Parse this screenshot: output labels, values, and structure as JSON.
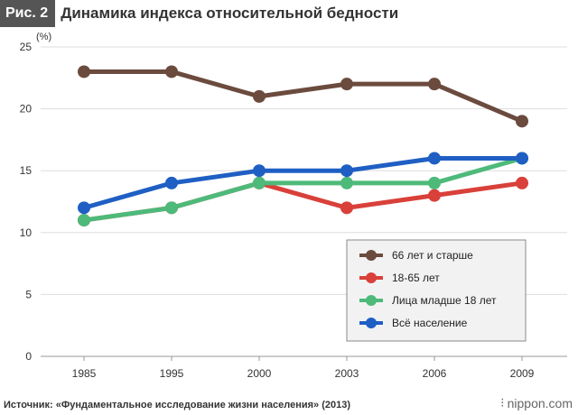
{
  "header": {
    "figure_label": "Рис. 2",
    "title": "Динамика индекса относительной бедности"
  },
  "chart_data": {
    "type": "line",
    "title": "Динамика индекса относительной бедности",
    "xlabel": "",
    "ylabel": "(%)",
    "categories": [
      "1985",
      "1995",
      "2000",
      "2003",
      "2006",
      "2009"
    ],
    "ylim": [
      0,
      25
    ],
    "yticks": [
      0,
      5,
      10,
      15,
      20,
      25
    ],
    "grid": true,
    "legend_position": "bottom-right",
    "series": [
      {
        "name": "66 лет и старше",
        "color": "#6b4b3e",
        "values": [
          23,
          23,
          21,
          22,
          22,
          19
        ]
      },
      {
        "name": "18-65 лет",
        "color": "#d9403a",
        "values": [
          11,
          12,
          14,
          12,
          13,
          14
        ]
      },
      {
        "name": "Лица младше 18 лет",
        "color": "#4dba7a",
        "values": [
          11,
          12,
          14,
          14,
          14,
          16
        ]
      },
      {
        "name": "Всё население",
        "color": "#1f5fc4",
        "values": [
          12,
          14,
          15,
          15,
          16,
          16
        ]
      }
    ]
  },
  "footer": {
    "source": "Источник: «Фундаментальное исследование жизни населения» (2013)",
    "brand": "nippon.com",
    "brand_icon": "nippon-logo-icon"
  }
}
